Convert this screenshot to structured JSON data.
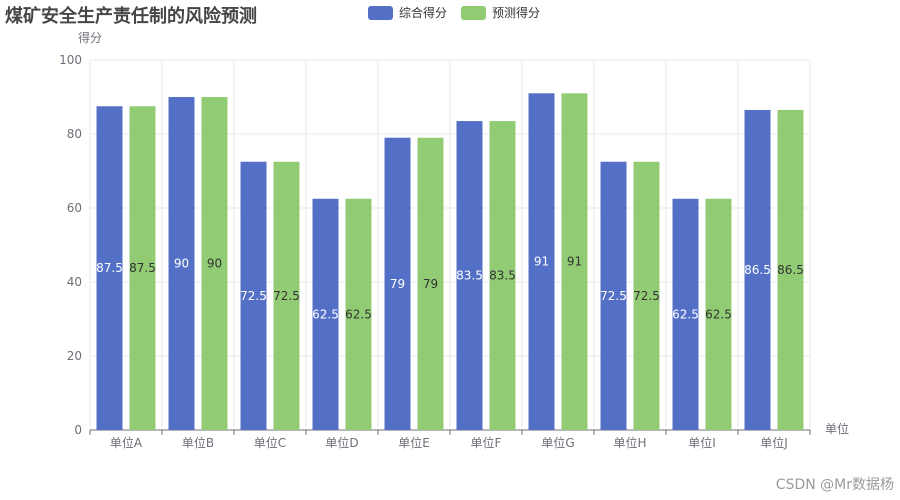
{
  "title": "煤矿安全生产责任制的风险预测",
  "legend": [
    {
      "label": "综合得分",
      "color": "#5470c6"
    },
    {
      "label": "预测得分",
      "color": "#91cc75"
    }
  ],
  "watermark": "CSDN @Mr数据杨",
  "chart_data": {
    "type": "bar",
    "title": "煤矿安全生产责任制的风险预测",
    "xlabel": "单位",
    "ylabel": "得分",
    "categories": [
      "单位A",
      "单位B",
      "单位C",
      "单位D",
      "单位E",
      "单位F",
      "单位G",
      "单位H",
      "单位I",
      "单位J"
    ],
    "series": [
      {
        "name": "综合得分",
        "values": [
          87.5,
          90,
          72.5,
          62.5,
          79,
          83.5,
          91,
          72.5,
          62.5,
          86.5
        ],
        "color": "#5470c6",
        "label_color": "#ffffff"
      },
      {
        "name": "预测得分",
        "values": [
          87.5,
          90,
          72.5,
          62.5,
          79,
          83.5,
          91,
          72.5,
          62.5,
          86.5
        ],
        "color": "#91cc75",
        "label_color": "#333333"
      }
    ],
    "ylim": [
      0,
      100
    ],
    "yticks": [
      0,
      20,
      40,
      60,
      80,
      100
    ],
    "grid": true,
    "legend_position": "top-center"
  }
}
